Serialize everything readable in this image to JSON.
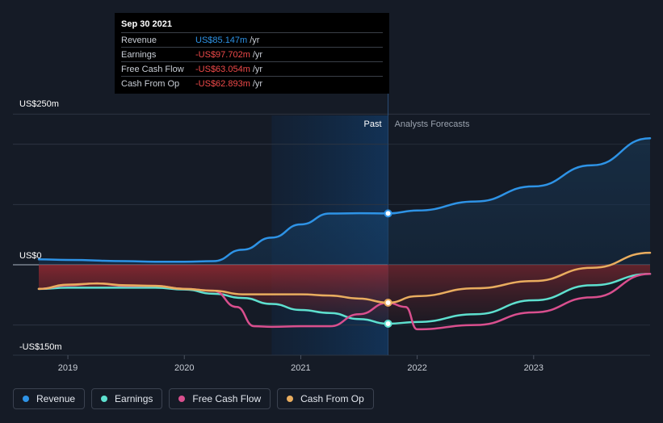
{
  "tooltip": {
    "date": "Sep 30 2021",
    "rows": [
      {
        "label": "Revenue",
        "value": "US$85.147m",
        "unit": "/yr",
        "color": "#2e93e6"
      },
      {
        "label": "Earnings",
        "value": "-US$97.702m",
        "unit": "/yr",
        "color": "#f04a4a"
      },
      {
        "label": "Free Cash Flow",
        "value": "-US$63.054m",
        "unit": "/yr",
        "color": "#f04a4a"
      },
      {
        "label": "Cash From Op",
        "value": "-US$62.893m",
        "unit": "/yr",
        "color": "#f04a4a"
      }
    ]
  },
  "legend": [
    {
      "label": "Revenue",
      "color": "#2e93e6"
    },
    {
      "label": "Earnings",
      "color": "#5ee0cf"
    },
    {
      "label": "Free Cash Flow",
      "color": "#d94f8e"
    },
    {
      "label": "Cash From Op",
      "color": "#e9ad5f"
    }
  ],
  "chart_data": {
    "type": "line",
    "title": "",
    "xlabel": "",
    "ylabel": "",
    "ylim": [
      -150,
      250
    ],
    "xlim": [
      2018.75,
      2024.0
    ],
    "y_labels": [
      "US$250m",
      "US$0",
      "-US$150m"
    ],
    "y_label_values": [
      250,
      0,
      -150
    ],
    "gridlines": [
      250,
      200,
      100,
      0,
      -100
    ],
    "x_ticks": [
      {
        "label": "2019",
        "value": 2019.0
      },
      {
        "label": "2020",
        "value": 2020.0
      },
      {
        "label": "2021",
        "value": 2021.0
      },
      {
        "label": "2022",
        "value": 2022.0
      },
      {
        "label": "2023",
        "value": 2023.0
      }
    ],
    "past_label": "Past",
    "forecast_label": "Analysts Forecasts",
    "highlight_start": 2020.75,
    "divider_x": 2021.75,
    "series": [
      {
        "name": "Revenue",
        "color": "#2e93e6",
        "x": [
          2018.75,
          2019.0,
          2019.5,
          2019.75,
          2020.0,
          2020.25,
          2020.5,
          2020.75,
          2021.0,
          2021.25,
          2021.5,
          2021.75,
          2022.0,
          2022.5,
          2023.0,
          2023.5,
          2024.0
        ],
        "values": [
          9,
          8,
          6,
          5,
          5,
          6,
          25,
          45,
          67,
          85,
          85.5,
          85.147,
          90,
          105,
          130,
          165,
          210
        ]
      },
      {
        "name": "Earnings",
        "color": "#5ee0cf",
        "x": [
          2018.75,
          2019.0,
          2019.5,
          2019.75,
          2020.0,
          2020.25,
          2020.5,
          2020.75,
          2021.0,
          2021.25,
          2021.5,
          2021.75,
          2022.0,
          2022.5,
          2023.0,
          2023.5,
          2024.0
        ],
        "values": [
          -40,
          -38,
          -38,
          -38,
          -41,
          -48,
          -55,
          -65,
          -75,
          -80,
          -90,
          -97.702,
          -95,
          -82,
          -59,
          -34,
          -15
        ]
      },
      {
        "name": "Free Cash Flow",
        "color": "#d94f8e",
        "x": [
          2018.75,
          2019.0,
          2019.25,
          2019.5,
          2019.75,
          2020.0,
          2020.25,
          2020.45,
          2020.6,
          2020.75,
          2021.0,
          2021.25,
          2021.5,
          2021.75,
          2021.9,
          2022.0,
          2022.5,
          2023.0,
          2023.5,
          2024.0
        ],
        "values": [
          -40,
          -34,
          -31,
          -35,
          -35,
          -40,
          -43,
          -70,
          -102,
          -103,
          -102,
          -102,
          -82,
          -63.054,
          -70,
          -107,
          -100,
          -79,
          -54,
          -15
        ]
      },
      {
        "name": "Cash From Op",
        "color": "#e9ad5f",
        "x": [
          2018.75,
          2019.0,
          2019.25,
          2019.5,
          2019.75,
          2020.0,
          2020.25,
          2020.5,
          2020.75,
          2021.0,
          2021.25,
          2021.5,
          2021.75,
          2022.0,
          2022.5,
          2023.0,
          2023.5,
          2024.0
        ],
        "values": [
          -40,
          -33,
          -31,
          -34,
          -35,
          -40,
          -43,
          -49,
          -49,
          -49,
          -51,
          -56,
          -62.893,
          -52,
          -39,
          -27,
          -5,
          20
        ]
      }
    ],
    "markers": [
      {
        "series": "Revenue",
        "x": 2021.75,
        "y": 85.147
      },
      {
        "series": "Cash From Op",
        "x": 2021.75,
        "y": -62.893
      },
      {
        "series": "Earnings",
        "x": 2021.75,
        "y": -97.702
      }
    ]
  }
}
